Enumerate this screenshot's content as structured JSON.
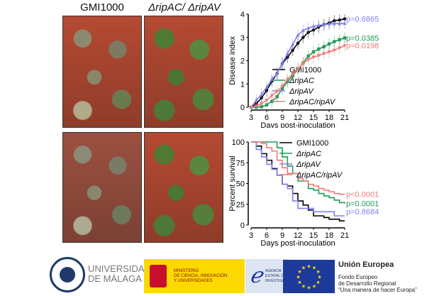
{
  "photos": {
    "label_left": "GMI1000",
    "label_right": "ΔripAC/ ΔripAV"
  },
  "chart_data": [
    {
      "type": "line",
      "ylabel": "Disease index",
      "xlabel": "Days post-inoculation",
      "xlim": [
        3,
        21
      ],
      "ylim": [
        0,
        4
      ],
      "xticks": [
        3,
        6,
        9,
        12,
        15,
        18,
        21
      ],
      "yticks": [
        0,
        1,
        2,
        3,
        4
      ],
      "error_bars": true,
      "legend": "right",
      "x": [
        3,
        4,
        5,
        6,
        7,
        8,
        9,
        10,
        11,
        12,
        13,
        14,
        15,
        16,
        17,
        18,
        19,
        20,
        21
      ],
      "series": [
        {
          "name": "GMI1000",
          "color": "#000000",
          "marker": "circle",
          "values": [
            0,
            0.15,
            0.4,
            0.72,
            1.12,
            1.45,
            1.88,
            2.15,
            2.45,
            2.75,
            3.0,
            3.22,
            3.32,
            3.45,
            3.55,
            3.62,
            3.72,
            3.75,
            3.8
          ],
          "pvalue": "p=0.6865",
          "pcolor": "#8080f0"
        },
        {
          "name": "ΔripAC",
          "color": "#1e9a55",
          "marker": "square",
          "values": [
            0,
            0,
            0.02,
            0.1,
            0.25,
            0.45,
            0.8,
            1.1,
            1.35,
            1.65,
            1.9,
            2.2,
            2.38,
            2.5,
            2.6,
            2.72,
            2.82,
            2.9,
            2.98
          ],
          "pvalue": "p=0.0385",
          "pcolor": "#1e9a55"
        },
        {
          "name": "ΔripAV",
          "color": "#8080f0",
          "marker": "triangle-up",
          "values": [
            0,
            0.3,
            0.55,
            0.85,
            1.2,
            1.45,
            1.9,
            2.3,
            2.7,
            3.1,
            3.3,
            3.4,
            3.48,
            3.52,
            3.55,
            3.58,
            3.6,
            3.6,
            3.6
          ]
        },
        {
          "name": "ΔripAC/ripAV",
          "color": "#f07878",
          "marker": "triangle-down",
          "values": [
            0,
            0.05,
            0.15,
            0.3,
            0.5,
            0.68,
            0.9,
            1.2,
            1.42,
            1.65,
            1.88,
            2.05,
            2.15,
            2.22,
            2.3,
            2.38,
            2.45,
            2.55,
            2.65
          ],
          "pvalue": "p=0.0198",
          "pcolor": "#f07878"
        }
      ]
    },
    {
      "type": "line",
      "step": true,
      "ylabel": "Percent survival",
      "xlabel": "Days post-inoculation",
      "xlim": [
        3,
        21
      ],
      "ylim": [
        0,
        100
      ],
      "xticks": [
        3,
        6,
        9,
        12,
        15,
        18,
        21
      ],
      "yticks": [
        0,
        25,
        50,
        75,
        100
      ],
      "legend": "top-right",
      "x": [
        3,
        4,
        5,
        6,
        7,
        8,
        9,
        10,
        11,
        12,
        13,
        14,
        15,
        16,
        17,
        18,
        19,
        20,
        21
      ],
      "series": [
        {
          "name": "GMI1000",
          "color": "#000000",
          "values": [
            100,
            95,
            86,
            78,
            68,
            60,
            49,
            47,
            38,
            29,
            24,
            18,
            11,
            11,
            9,
            7,
            7,
            5,
            5
          ]
        },
        {
          "name": "ΔripAC",
          "color": "#1e9a55",
          "values": [
            100,
            100,
            100,
            100,
            100,
            93,
            82,
            71,
            62,
            53,
            53,
            44,
            42,
            38,
            35,
            33,
            30,
            27,
            26
          ],
          "pvalue": "p=0.0001"
        },
        {
          "name": "ΔripAV",
          "color": "#8080f0",
          "values": [
            100,
            91,
            82,
            73,
            67,
            60,
            49,
            44,
            29,
            20,
            20,
            20,
            16,
            16,
            16,
            16,
            11,
            11,
            11
          ],
          "pvalue": "p=0.8684"
        },
        {
          "name": "ΔripAC/ripAV",
          "color": "#f07878",
          "values": [
            100,
            100,
            98,
            93,
            89,
            78,
            69,
            62,
            62,
            56,
            53,
            49,
            47,
            44,
            42,
            40,
            38,
            37,
            37
          ],
          "pvalue": "p<0.0001"
        }
      ]
    }
  ],
  "footer": {
    "uma": [
      "UNIVERSIDAD",
      "DE MÁLAGA"
    ],
    "ministerio": [
      "MINISTERIO",
      "DE CIENCIA, INNOVACIÓN",
      "Y UNIVERSIDADES"
    ],
    "agencia": [
      "AGENCIA",
      "ESTATAL DE",
      "INVESTIGACIÓN"
    ],
    "eu_title": "Unión Europea",
    "eu_lines": [
      "Fondo Europeo",
      "de Desarrollo Regional",
      "“Una manera de hacer Europa”"
    ],
    "colors": {
      "ministerio_bg": "#fcd900",
      "agencia_bg": "#dde4f2",
      "eu_flag": "#1d3a9a",
      "eu_star": "#ffdd00"
    }
  }
}
